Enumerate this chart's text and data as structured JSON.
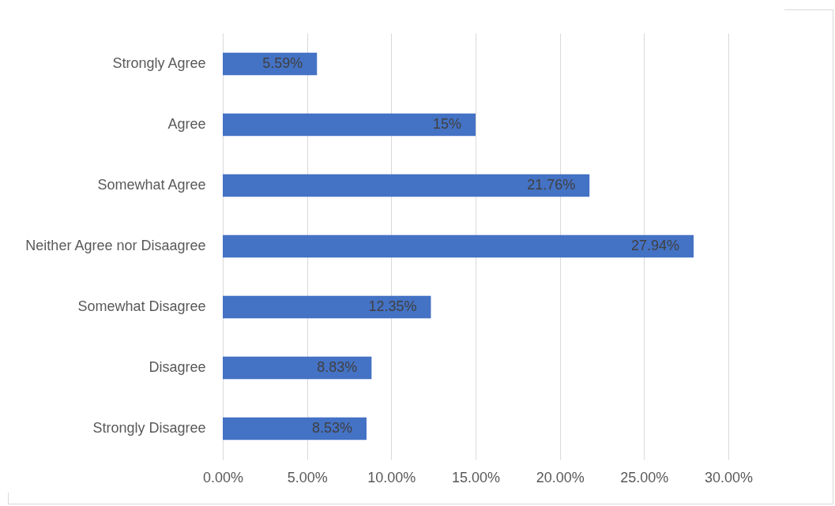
{
  "chart_data": {
    "type": "bar",
    "orientation": "horizontal",
    "categories": [
      "Strongly Agree",
      "Agree",
      "Somewhat Agree",
      "Neither Agree nor Disaagree",
      "Somewhat Disagree",
      "Disagree",
      "Strongly Disagree"
    ],
    "values": [
      5.59,
      15,
      21.76,
      27.94,
      12.35,
      8.83,
      8.53
    ],
    "value_labels": [
      "5.59%",
      "15%",
      "21.76%",
      "27.94%",
      "12.35%",
      "8.83%",
      "8.53%"
    ],
    "color": "#4472c4",
    "xlim": [
      0,
      30
    ],
    "xticks": [
      {
        "value": 0,
        "label": "0.00%"
      },
      {
        "value": 5,
        "label": "5.00%"
      },
      {
        "value": 10,
        "label": "10.00%"
      },
      {
        "value": 15,
        "label": "15.00%"
      },
      {
        "value": 20,
        "label": "20.00%"
      },
      {
        "value": 25,
        "label": "25.00%"
      },
      {
        "value": 30,
        "label": "30.00%"
      }
    ],
    "grid": "x"
  }
}
